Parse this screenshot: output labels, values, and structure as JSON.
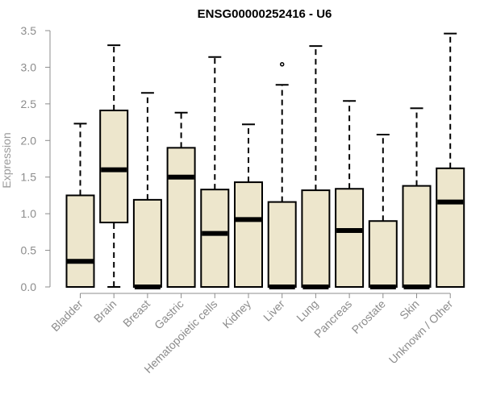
{
  "colors": {
    "box_fill": "#ede6cc",
    "box_stroke": "#000000",
    "axis": "#8c8c8c",
    "tick_text": "#8c8c8c"
  },
  "chart_data": {
    "type": "boxplot",
    "title": "ENSG00000252416 - U6",
    "xlabel": "",
    "ylabel": "Expression",
    "ylim": [
      0,
      3.5
    ],
    "yticks": [
      0.0,
      0.5,
      1.0,
      1.5,
      2.0,
      2.5,
      3.0,
      3.5
    ],
    "ytick_labels": [
      "0.0",
      "0.5",
      "1.0",
      "1.5",
      "2.0",
      "2.5",
      "3.0",
      "3.5"
    ],
    "grid": false,
    "legend": "none",
    "categories": [
      "Bladder",
      "Brain",
      "Breast",
      "Gastric",
      "Hematopoietic cells",
      "Kidney",
      "Liver",
      "Lung",
      "Pancreas",
      "Prostate",
      "Skin",
      "Unknown / Other"
    ],
    "boxes": [
      {
        "whisker_low": 0.0,
        "q1": 0.0,
        "median": 0.35,
        "q3": 1.25,
        "whisker_high": 2.23,
        "outliers": []
      },
      {
        "whisker_low": 0.0,
        "q1": 0.88,
        "median": 1.6,
        "q3": 2.41,
        "whisker_high": 3.3,
        "outliers": []
      },
      {
        "whisker_low": 0.0,
        "q1": 0.0,
        "median": 0.0,
        "q3": 1.19,
        "whisker_high": 2.65,
        "outliers": []
      },
      {
        "whisker_low": 0.0,
        "q1": 0.0,
        "median": 1.5,
        "q3": 1.9,
        "whisker_high": 2.38,
        "outliers": []
      },
      {
        "whisker_low": 0.0,
        "q1": 0.0,
        "median": 0.73,
        "q3": 1.33,
        "whisker_high": 3.14,
        "outliers": []
      },
      {
        "whisker_low": 0.0,
        "q1": 0.0,
        "median": 0.92,
        "q3": 1.43,
        "whisker_high": 2.22,
        "outliers": []
      },
      {
        "whisker_low": 0.0,
        "q1": 0.0,
        "median": 0.0,
        "q3": 1.16,
        "whisker_high": 2.76,
        "outliers": [
          3.04
        ]
      },
      {
        "whisker_low": 0.0,
        "q1": 0.0,
        "median": 0.0,
        "q3": 1.32,
        "whisker_high": 3.29,
        "outliers": []
      },
      {
        "whisker_low": 0.0,
        "q1": 0.0,
        "median": 0.77,
        "q3": 1.34,
        "whisker_high": 2.54,
        "outliers": []
      },
      {
        "whisker_low": 0.0,
        "q1": 0.0,
        "median": 0.0,
        "q3": 0.9,
        "whisker_high": 2.08,
        "outliers": []
      },
      {
        "whisker_low": 0.0,
        "q1": 0.0,
        "median": 0.0,
        "q3": 1.38,
        "whisker_high": 2.44,
        "outliers": []
      },
      {
        "whisker_low": 0.0,
        "q1": 0.0,
        "median": 1.16,
        "q3": 1.62,
        "whisker_high": 3.46,
        "outliers": []
      }
    ]
  }
}
